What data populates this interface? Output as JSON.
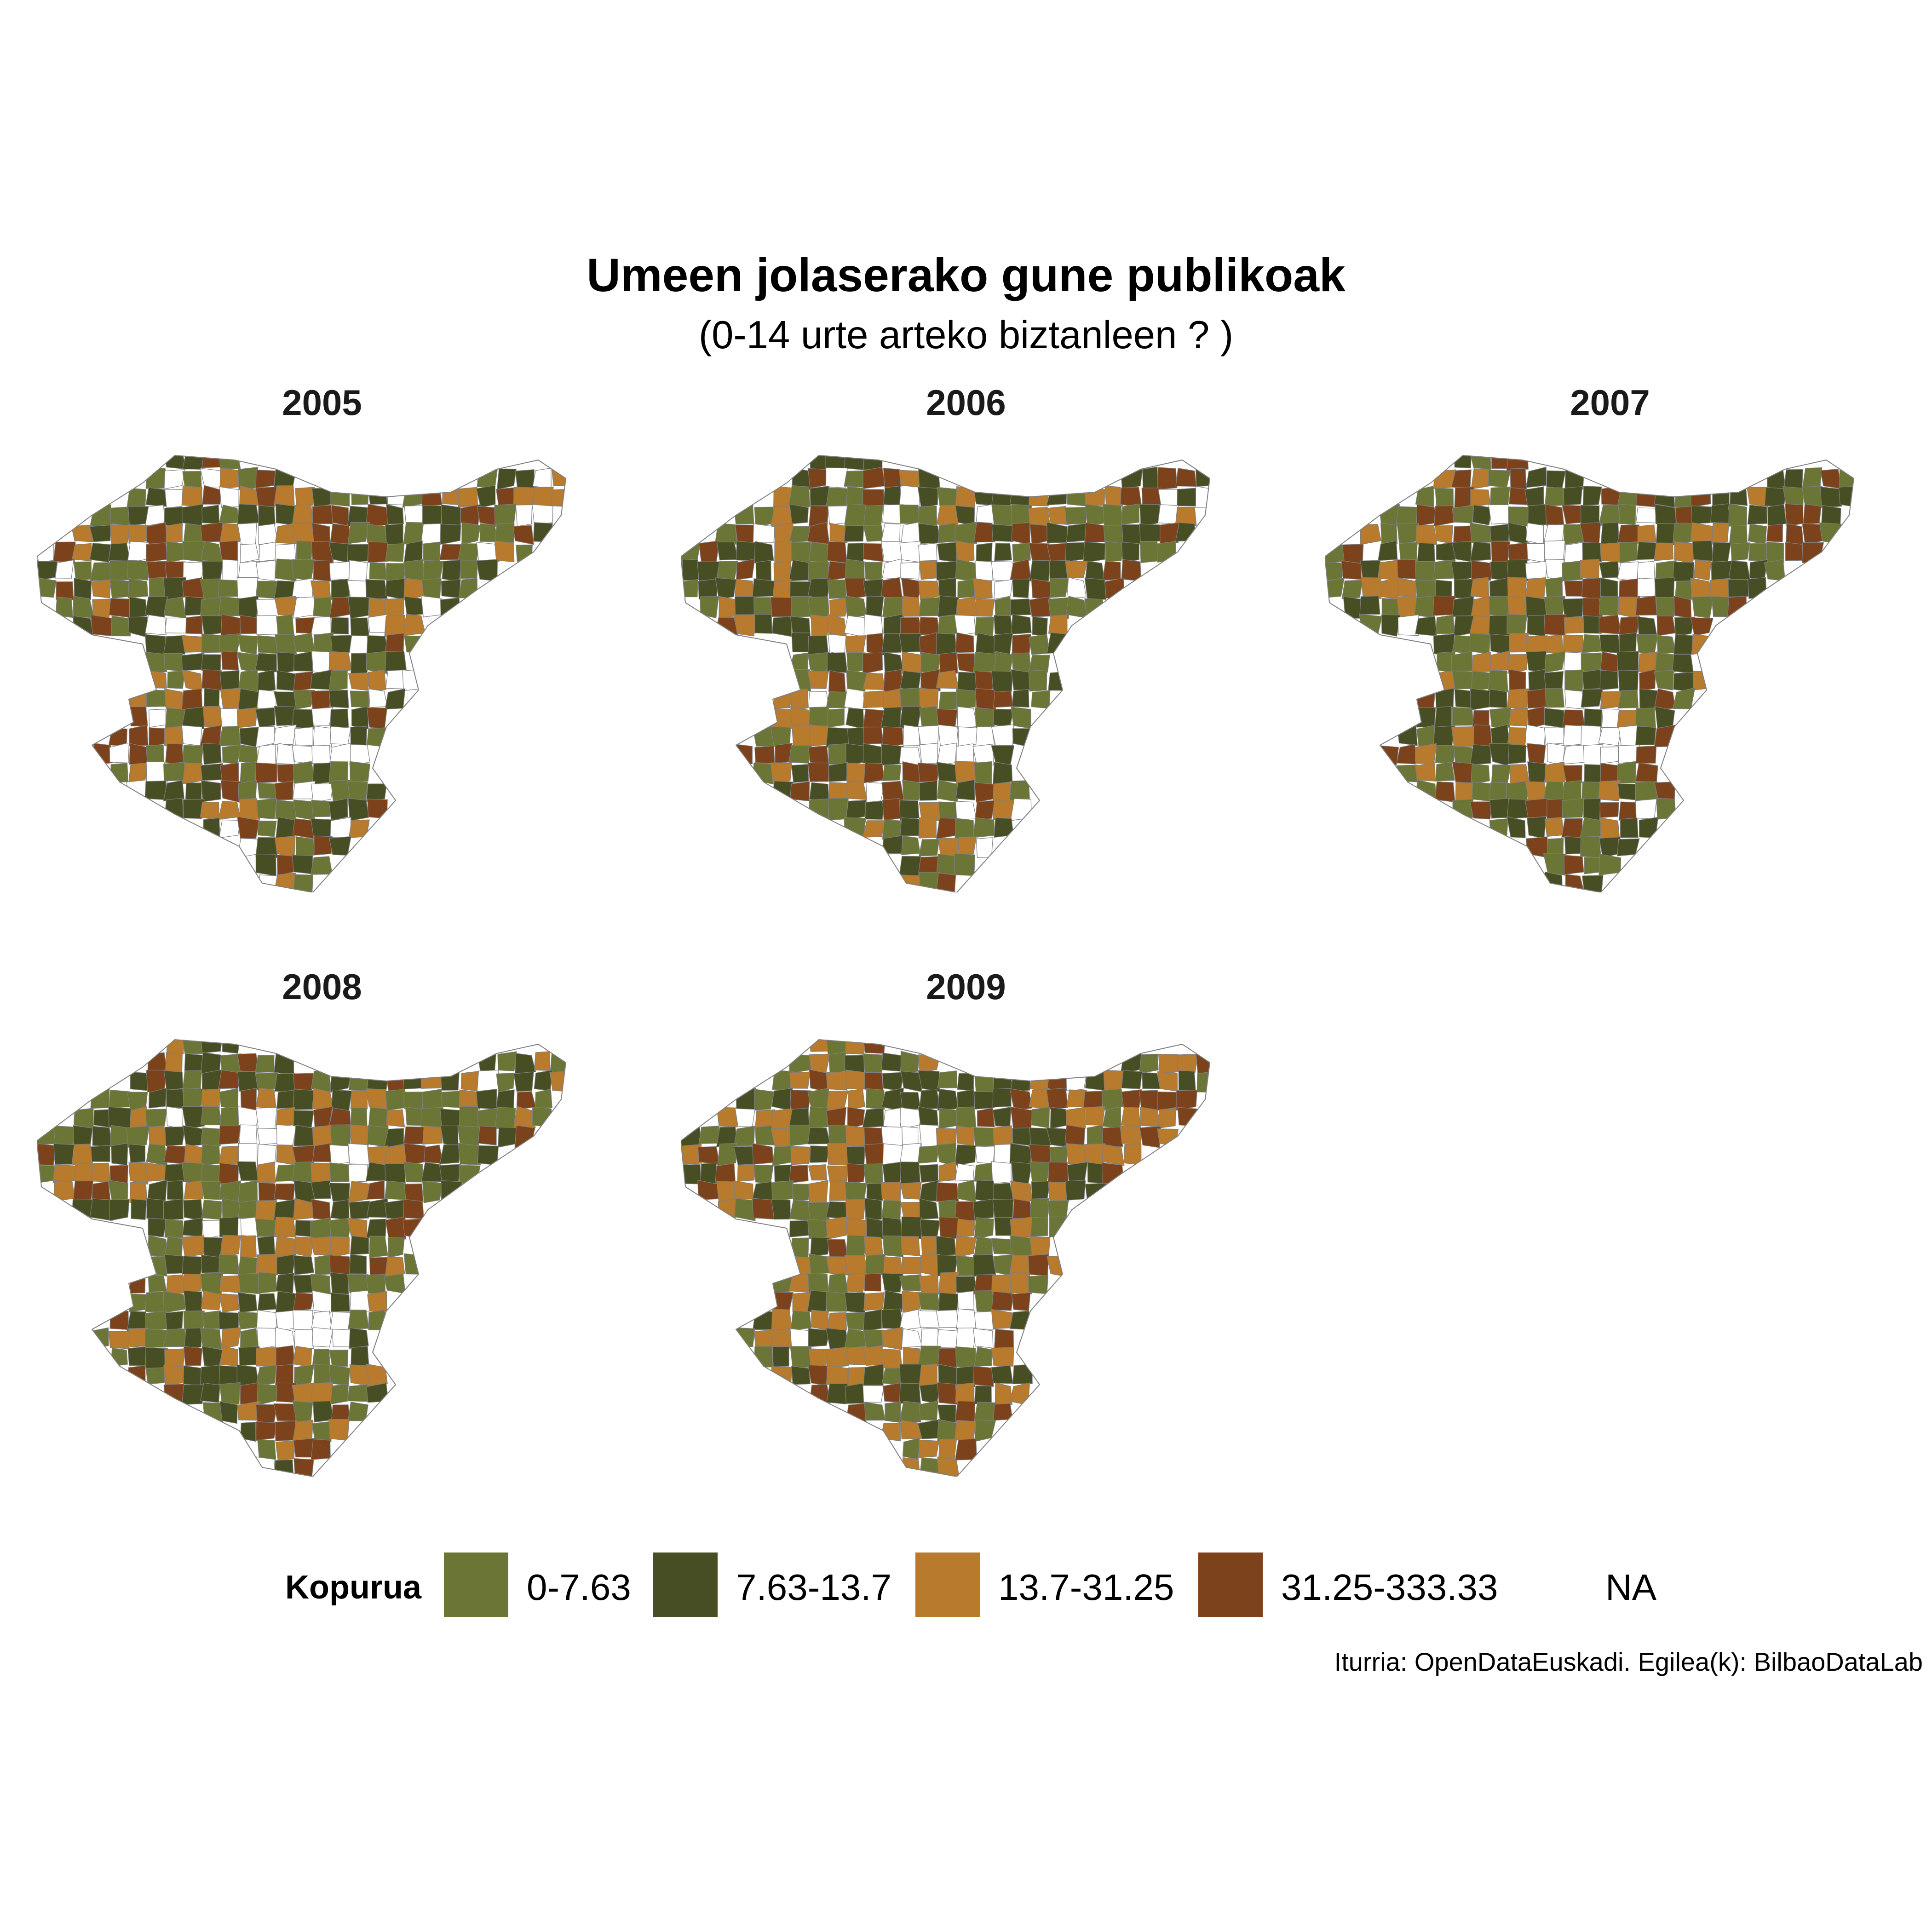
{
  "title": "Umeen jolaserako gune publikoak",
  "subtitle": "(0-14 urte arteko biztanleen ? )",
  "panels": [
    {
      "year": "2005",
      "weights": [
        30,
        35,
        15,
        18,
        12
      ]
    },
    {
      "year": "2006",
      "weights": [
        30,
        32,
        15,
        20,
        7
      ]
    },
    {
      "year": "2007",
      "weights": [
        30,
        30,
        20,
        18,
        3
      ]
    },
    {
      "year": "2008",
      "weights": [
        30,
        34,
        20,
        16,
        2
      ]
    },
    {
      "year": "2009",
      "weights": [
        25,
        30,
        27,
        18,
        2
      ]
    }
  ],
  "legend": {
    "title": "Kopurua",
    "items": [
      {
        "label": "0-7.63",
        "color": "#6b7536"
      },
      {
        "label": "7.63-13.7",
        "color": "#474e24"
      },
      {
        "label": "13.7-31.25",
        "color": "#b87a2c"
      },
      {
        "label": "31.25-333.33",
        "color": "#7c421b"
      },
      {
        "label": "NA",
        "color": "#ffffff"
      }
    ]
  },
  "caption": "Iturria: OpenDataEuskadi. Egilea(k): BilbaoDataLab"
}
